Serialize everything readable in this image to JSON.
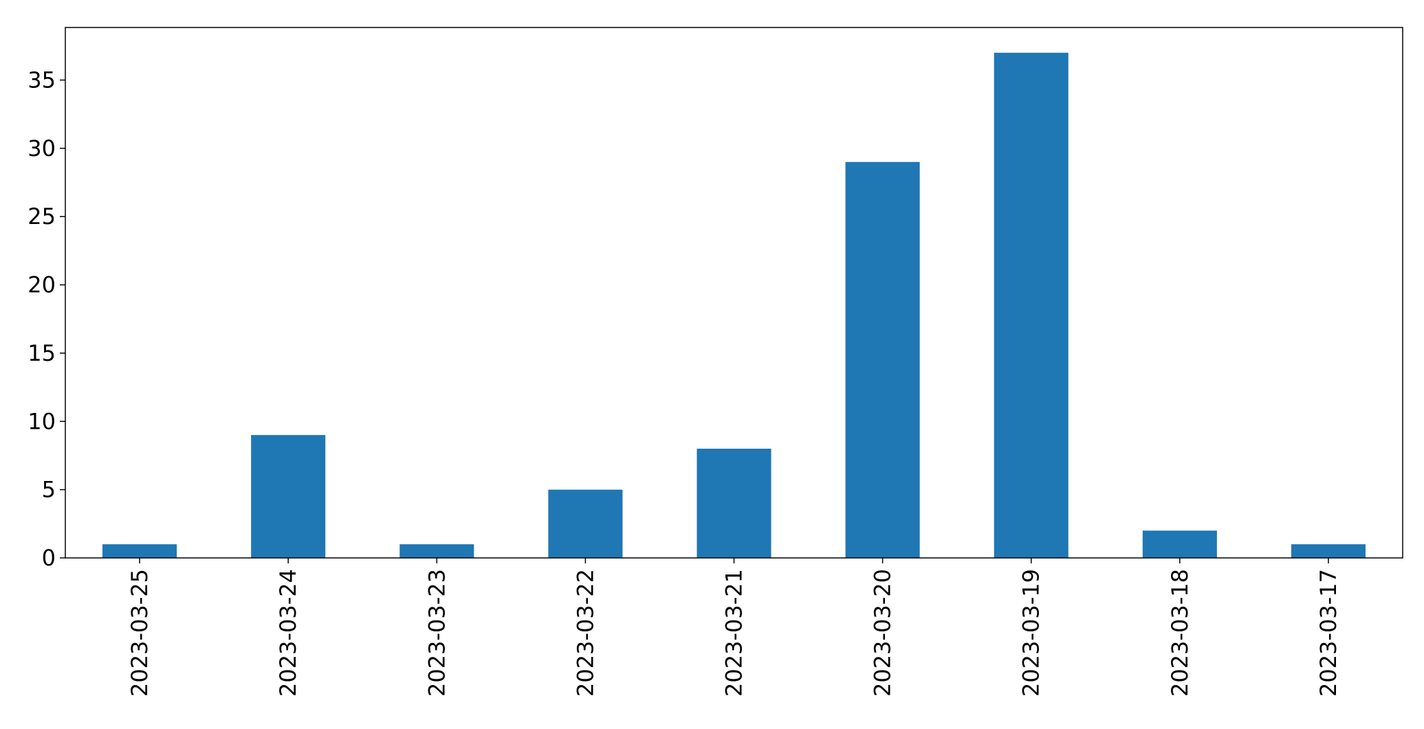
{
  "chart_data": {
    "type": "bar",
    "categories": [
      "2023-03-25",
      "2023-03-24",
      "2023-03-23",
      "2023-03-22",
      "2023-03-21",
      "2023-03-20",
      "2023-03-19",
      "2023-03-18",
      "2023-03-17"
    ],
    "values": [
      1,
      9,
      1,
      5,
      8,
      29,
      37,
      2,
      1
    ],
    "title": "",
    "xlabel": "",
    "ylabel": "",
    "ylim": [
      0,
      38.85
    ],
    "yticks": [
      0,
      5,
      10,
      15,
      20,
      25,
      30,
      35
    ],
    "grid": false,
    "legend": "none",
    "bar_color": "#1f77b4"
  }
}
